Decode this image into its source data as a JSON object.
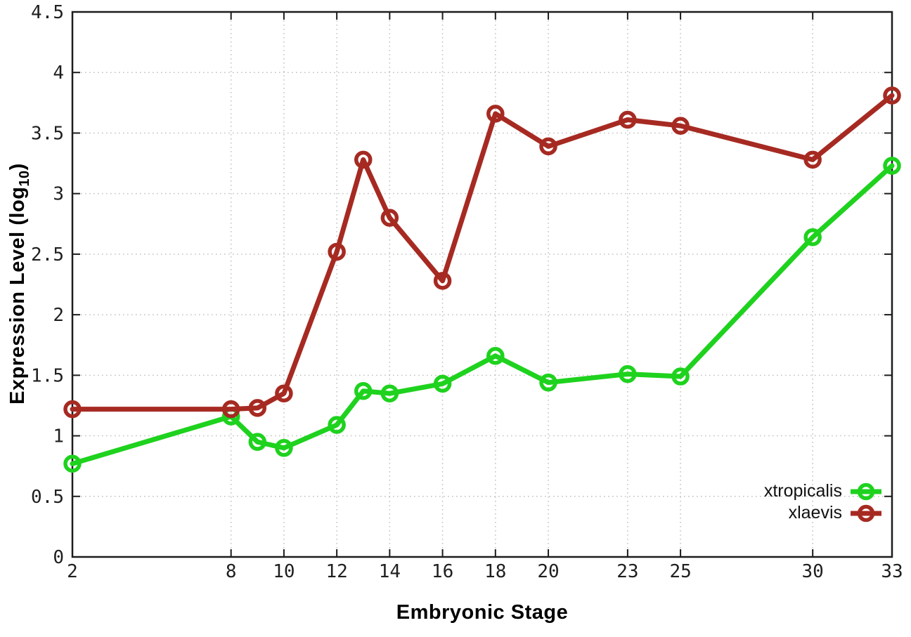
{
  "labels": {
    "ylabel_prefix": "Expression Level (log",
    "ylabel_sub": "10",
    "ylabel_suffix": ")",
    "xlabel": "Embryonic Stage"
  },
  "chart_data": {
    "type": "line",
    "title": "",
    "xlabel": "Embryonic Stage",
    "ylabel": "Expression Level (log10)",
    "xlim": [
      2,
      33
    ],
    "ylim": [
      0,
      4.5
    ],
    "xticks": [
      2,
      8,
      10,
      12,
      14,
      16,
      18,
      20,
      23,
      25,
      30,
      33
    ],
    "yticks": [
      0,
      0.5,
      1,
      1.5,
      2,
      2.5,
      3,
      3.5,
      4,
      4.5
    ],
    "grid": true,
    "grid_style": "dotted",
    "legend_position": "bottom-right",
    "marker": "open-circle",
    "x": [
      2,
      8,
      9,
      10,
      12,
      13,
      14,
      16,
      18,
      20,
      23,
      25,
      30,
      33
    ],
    "series": [
      {
        "name": "xtropicalis",
        "color": "#1ed21e",
        "values": [
          0.77,
          1.16,
          0.95,
          0.9,
          1.09,
          1.37,
          1.35,
          1.43,
          1.66,
          1.44,
          1.51,
          1.49,
          2.64,
          3.23
        ]
      },
      {
        "name": "xlaevis",
        "color": "#a62a22",
        "values": [
          1.22,
          1.22,
          1.23,
          1.35,
          2.52,
          3.28,
          2.8,
          2.28,
          3.66,
          3.39,
          3.61,
          3.56,
          3.28,
          3.81
        ]
      }
    ],
    "axis_color": "#1c1c1c",
    "grid_color": "#c2c2c2",
    "tick_label_color": "#1f1f1f"
  }
}
